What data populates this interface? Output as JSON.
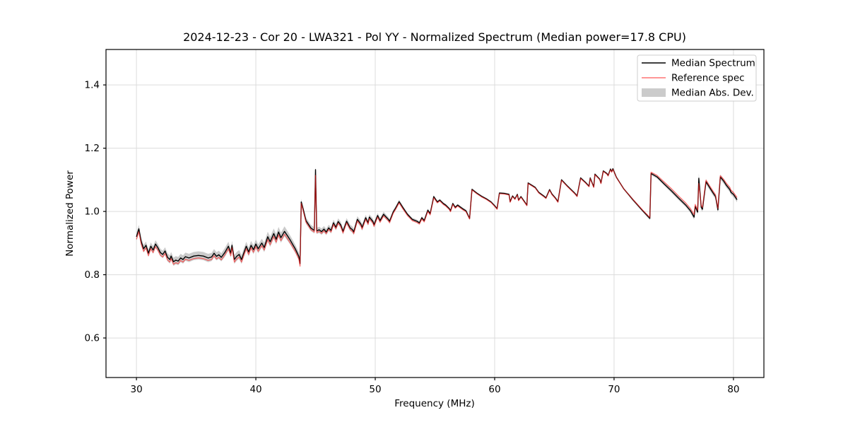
{
  "title": "2024-12-23 - Cor 20 - LWA321 - Pol YY - Normalized Spectrum (Median power=17.8 CPU)",
  "xlabel": "Frequency (MHz)",
  "ylabel": "Normalized Power",
  "legend": {
    "items": [
      {
        "label": "Median Spectrum",
        "type": "line",
        "color": "#000000"
      },
      {
        "label": "Reference spec",
        "type": "line",
        "color": "rgba(255,30,30,0.62)"
      },
      {
        "label": "Median Abs. Dev.",
        "type": "patch",
        "color": "rgba(140,140,140,0.45)"
      }
    ]
  },
  "colors": {
    "median_line": "#000000",
    "reference_line": "rgba(255,30,30,0.62)",
    "mad_band": "rgba(140,140,140,0.45)",
    "grid": "#dcdcdc",
    "spine": "#000000",
    "legend_border": "#cccccc",
    "legend_bg": "rgba(255,255,255,0.9)"
  },
  "chart_data": {
    "type": "line",
    "title": "2024-12-23 - Cor 20 - LWA321 - Pol YY - Normalized Spectrum (Median power=17.8 CPU)",
    "xlabel": "Frequency (MHz)",
    "ylabel": "Normalized Power",
    "xlim": [
      27.45,
      82.55
    ],
    "ylim": [
      0.475,
      1.512
    ],
    "xticks": [
      30,
      40,
      50,
      60,
      70,
      80
    ],
    "yticks": [
      0.6,
      0.8,
      1.0,
      1.2,
      1.4
    ],
    "grid": true,
    "legend_position": "upper right",
    "series_names": [
      "Median Spectrum",
      "Reference spec",
      "Median Abs. Dev."
    ],
    "point_format": [
      "frequency_mhz",
      "median",
      "reference",
      "mad_halfwidth"
    ],
    "points": [
      [
        30.0,
        0.92,
        0.912,
        0.012
      ],
      [
        30.2,
        0.945,
        0.936,
        0.012
      ],
      [
        30.4,
        0.905,
        0.897,
        0.012
      ],
      [
        30.6,
        0.882,
        0.874,
        0.012
      ],
      [
        30.8,
        0.893,
        0.885,
        0.012
      ],
      [
        31.0,
        0.868,
        0.86,
        0.012
      ],
      [
        31.2,
        0.89,
        0.882,
        0.012
      ],
      [
        31.4,
        0.878,
        0.87,
        0.012
      ],
      [
        31.6,
        0.897,
        0.889,
        0.012
      ],
      [
        31.8,
        0.885,
        0.877,
        0.012
      ],
      [
        32.0,
        0.87,
        0.862,
        0.012
      ],
      [
        32.2,
        0.864,
        0.856,
        0.012
      ],
      [
        32.4,
        0.875,
        0.867,
        0.012
      ],
      [
        32.6,
        0.855,
        0.847,
        0.013
      ],
      [
        32.8,
        0.848,
        0.84,
        0.013
      ],
      [
        32.9,
        0.859,
        0.851,
        0.013
      ],
      [
        33.1,
        0.841,
        0.833,
        0.013
      ],
      [
        33.3,
        0.846,
        0.838,
        0.013
      ],
      [
        33.5,
        0.843,
        0.835,
        0.013
      ],
      [
        33.7,
        0.853,
        0.845,
        0.013
      ],
      [
        33.9,
        0.848,
        0.84,
        0.013
      ],
      [
        34.1,
        0.857,
        0.849,
        0.013
      ],
      [
        34.4,
        0.853,
        0.845,
        0.013
      ],
      [
        34.8,
        0.859,
        0.851,
        0.013
      ],
      [
        35.2,
        0.861,
        0.853,
        0.013
      ],
      [
        35.6,
        0.859,
        0.851,
        0.013
      ],
      [
        36.0,
        0.853,
        0.845,
        0.013
      ],
      [
        36.3,
        0.856,
        0.848,
        0.013
      ],
      [
        36.5,
        0.868,
        0.86,
        0.013
      ],
      [
        36.7,
        0.858,
        0.85,
        0.013
      ],
      [
        36.9,
        0.863,
        0.855,
        0.013
      ],
      [
        37.1,
        0.855,
        0.847,
        0.013
      ],
      [
        37.4,
        0.87,
        0.862,
        0.014
      ],
      [
        37.7,
        0.89,
        0.882,
        0.014
      ],
      [
        37.9,
        0.868,
        0.86,
        0.014
      ],
      [
        38.0,
        0.893,
        0.885,
        0.014
      ],
      [
        38.2,
        0.848,
        0.84,
        0.014
      ],
      [
        38.4,
        0.858,
        0.85,
        0.014
      ],
      [
        38.6,
        0.864,
        0.856,
        0.014
      ],
      [
        38.8,
        0.848,
        0.84,
        0.014
      ],
      [
        39.0,
        0.87,
        0.862,
        0.014
      ],
      [
        39.2,
        0.89,
        0.882,
        0.014
      ],
      [
        39.4,
        0.872,
        0.864,
        0.014
      ],
      [
        39.6,
        0.893,
        0.885,
        0.014
      ],
      [
        39.8,
        0.879,
        0.871,
        0.014
      ],
      [
        40.0,
        0.897,
        0.889,
        0.014
      ],
      [
        40.2,
        0.882,
        0.874,
        0.014
      ],
      [
        40.5,
        0.9,
        0.892,
        0.014
      ],
      [
        40.7,
        0.886,
        0.878,
        0.015
      ],
      [
        41.0,
        0.92,
        0.911,
        0.016
      ],
      [
        41.2,
        0.904,
        0.895,
        0.016
      ],
      [
        41.5,
        0.93,
        0.921,
        0.016
      ],
      [
        41.7,
        0.912,
        0.903,
        0.016
      ],
      [
        41.9,
        0.935,
        0.926,
        0.016
      ],
      [
        42.1,
        0.917,
        0.908,
        0.016
      ],
      [
        42.4,
        0.937,
        0.928,
        0.016
      ],
      [
        42.7,
        0.92,
        0.911,
        0.015
      ],
      [
        42.9,
        0.908,
        0.899,
        0.014
      ],
      [
        43.1,
        0.895,
        0.887,
        0.014
      ],
      [
        43.3,
        0.882,
        0.874,
        0.013
      ],
      [
        43.6,
        0.858,
        0.85,
        0.013
      ],
      [
        43.7,
        0.835,
        0.827,
        0.012
      ],
      [
        43.8,
        1.03,
        1.025,
        0.01
      ],
      [
        44.0,
        1.002,
        0.997,
        0.01
      ],
      [
        44.2,
        0.971,
        0.966,
        0.01
      ],
      [
        44.6,
        0.948,
        0.943,
        0.01
      ],
      [
        44.9,
        0.94,
        0.935,
        0.01
      ],
      [
        45.0,
        1.132,
        1.114,
        0.012
      ],
      [
        45.1,
        0.938,
        0.933,
        0.01
      ],
      [
        45.3,
        0.942,
        0.937,
        0.01
      ],
      [
        45.5,
        0.936,
        0.931,
        0.01
      ],
      [
        45.7,
        0.944,
        0.939,
        0.01
      ],
      [
        45.9,
        0.935,
        0.93,
        0.01
      ],
      [
        46.1,
        0.948,
        0.943,
        0.01
      ],
      [
        46.3,
        0.94,
        0.935,
        0.01
      ],
      [
        46.5,
        0.964,
        0.959,
        0.01
      ],
      [
        46.7,
        0.95,
        0.945,
        0.01
      ],
      [
        46.9,
        0.968,
        0.963,
        0.01
      ],
      [
        47.1,
        0.958,
        0.953,
        0.01
      ],
      [
        47.3,
        0.937,
        0.932,
        0.01
      ],
      [
        47.6,
        0.969,
        0.964,
        0.01
      ],
      [
        47.9,
        0.948,
        0.943,
        0.01
      ],
      [
        48.1,
        0.942,
        0.937,
        0.01
      ],
      [
        48.2,
        0.935,
        0.93,
        0.01
      ],
      [
        48.5,
        0.975,
        0.97,
        0.01
      ],
      [
        48.8,
        0.96,
        0.955,
        0.01
      ],
      [
        48.9,
        0.949,
        0.944,
        0.01
      ],
      [
        49.2,
        0.98,
        0.975,
        0.009
      ],
      [
        49.4,
        0.964,
        0.959,
        0.009
      ],
      [
        49.5,
        0.982,
        0.977,
        0.009
      ],
      [
        49.8,
        0.969,
        0.964,
        0.009
      ],
      [
        49.9,
        0.958,
        0.953,
        0.009
      ],
      [
        50.2,
        0.987,
        0.982,
        0.008
      ],
      [
        50.4,
        0.971,
        0.966,
        0.008
      ],
      [
        50.7,
        0.991,
        0.986,
        0.008
      ],
      [
        51.1,
        0.975,
        0.97,
        0.007
      ],
      [
        51.2,
        0.969,
        0.964,
        0.007
      ],
      [
        51.5,
        0.998,
        0.994,
        0.007
      ],
      [
        51.7,
        1.01,
        1.006,
        0.006
      ],
      [
        52.0,
        1.031,
        1.027,
        0.006
      ],
      [
        52.3,
        1.013,
        1.009,
        0.006
      ],
      [
        52.7,
        0.991,
        0.987,
        0.005
      ],
      [
        53.1,
        0.975,
        0.971,
        0.005
      ],
      [
        53.5,
        0.969,
        0.965,
        0.005
      ],
      [
        53.7,
        0.964,
        0.96,
        0.005
      ],
      [
        53.9,
        0.98,
        0.976,
        0.005
      ],
      [
        54.1,
        0.971,
        0.967,
        0.005
      ],
      [
        54.4,
        1.004,
        1.0,
        0.005
      ],
      [
        54.6,
        0.993,
        0.989,
        0.005
      ],
      [
        54.9,
        1.047,
        1.043,
        0.004
      ],
      [
        55.2,
        1.03,
        1.027,
        0.004
      ],
      [
        55.4,
        1.036,
        1.033,
        0.004
      ],
      [
        55.7,
        1.025,
        1.022,
        0.004
      ],
      [
        55.9,
        1.02,
        1.017,
        0.004
      ],
      [
        56.2,
        1.009,
        1.006,
        0.004
      ],
      [
        56.3,
        1.002,
        0.999,
        0.004
      ],
      [
        56.5,
        1.025,
        1.022,
        0.004
      ],
      [
        56.7,
        1.013,
        1.01,
        0.004
      ],
      [
        56.9,
        1.02,
        1.017,
        0.004
      ],
      [
        57.3,
        1.009,
        1.006,
        0.004
      ],
      [
        57.6,
        1.002,
        0.999,
        0.004
      ],
      [
        57.9,
        0.978,
        0.976,
        0.004
      ],
      [
        58.1,
        1.07,
        1.068,
        0.003
      ],
      [
        58.5,
        1.058,
        1.056,
        0.003
      ],
      [
        58.9,
        1.048,
        1.046,
        0.003
      ],
      [
        59.3,
        1.04,
        1.038,
        0.003
      ],
      [
        59.7,
        1.03,
        1.028,
        0.003
      ],
      [
        60.0,
        1.018,
        1.016,
        0.003
      ],
      [
        60.2,
        1.009,
        1.007,
        0.003
      ],
      [
        60.4,
        1.058,
        1.056,
        0.003
      ],
      [
        60.8,
        1.057,
        1.055,
        0.003
      ],
      [
        61.2,
        1.054,
        1.052,
        0.003
      ],
      [
        61.3,
        1.031,
        1.029,
        0.003
      ],
      [
        61.5,
        1.049,
        1.047,
        0.003
      ],
      [
        61.7,
        1.04,
        1.038,
        0.003
      ],
      [
        61.9,
        1.054,
        1.052,
        0.003
      ],
      [
        62.0,
        1.036,
        1.034,
        0.003
      ],
      [
        62.2,
        1.047,
        1.045,
        0.003
      ],
      [
        62.5,
        1.031,
        1.029,
        0.003
      ],
      [
        62.7,
        1.02,
        1.018,
        0.003
      ],
      [
        62.8,
        1.09,
        1.088,
        0.003
      ],
      [
        63.1,
        1.083,
        1.081,
        0.003
      ],
      [
        63.4,
        1.076,
        1.074,
        0.003
      ],
      [
        63.7,
        1.06,
        1.058,
        0.003
      ],
      [
        64.1,
        1.049,
        1.047,
        0.003
      ],
      [
        64.3,
        1.043,
        1.041,
        0.003
      ],
      [
        64.6,
        1.069,
        1.067,
        0.003
      ],
      [
        64.8,
        1.055,
        1.053,
        0.003
      ],
      [
        65.1,
        1.042,
        1.04,
        0.003
      ],
      [
        65.3,
        1.031,
        1.029,
        0.003
      ],
      [
        65.6,
        1.1,
        1.098,
        0.003
      ],
      [
        66.1,
        1.08,
        1.078,
        0.003
      ],
      [
        66.7,
        1.058,
        1.056,
        0.003
      ],
      [
        66.9,
        1.049,
        1.047,
        0.003
      ],
      [
        67.2,
        1.106,
        1.104,
        0.003
      ],
      [
        67.6,
        1.092,
        1.09,
        0.003
      ],
      [
        67.9,
        1.08,
        1.078,
        0.003
      ],
      [
        68.0,
        1.106,
        1.104,
        0.003
      ],
      [
        68.3,
        1.078,
        1.076,
        0.003
      ],
      [
        68.4,
        1.118,
        1.116,
        0.003
      ],
      [
        68.8,
        1.102,
        1.1,
        0.003
      ],
      [
        68.9,
        1.09,
        1.088,
        0.003
      ],
      [
        69.1,
        1.128,
        1.126,
        0.003
      ],
      [
        69.4,
        1.12,
        1.118,
        0.003
      ],
      [
        69.5,
        1.114,
        1.112,
        0.003
      ],
      [
        69.7,
        1.134,
        1.132,
        0.003
      ],
      [
        69.8,
        1.126,
        1.124,
        0.003
      ],
      [
        69.9,
        1.135,
        1.133,
        0.003
      ],
      [
        70.2,
        1.108,
        1.107,
        0.003
      ],
      [
        70.8,
        1.072,
        1.072,
        0.003
      ],
      [
        71.6,
        1.036,
        1.037,
        0.004
      ],
      [
        72.4,
        1.002,
        1.004,
        0.004
      ],
      [
        73.0,
        0.978,
        0.981,
        0.005
      ],
      [
        73.1,
        1.12,
        1.124,
        0.005
      ],
      [
        73.6,
        1.109,
        1.114,
        0.005
      ],
      [
        74.2,
        1.087,
        1.093,
        0.006
      ],
      [
        74.8,
        1.065,
        1.072,
        0.006
      ],
      [
        75.4,
        1.042,
        1.049,
        0.006
      ],
      [
        76.0,
        1.02,
        1.027,
        0.006
      ],
      [
        76.4,
        1.002,
        1.009,
        0.007
      ],
      [
        76.7,
        0.982,
        0.99,
        0.008
      ],
      [
        76.8,
        1.016,
        1.022,
        0.008
      ],
      [
        77.0,
        0.998,
        1.004,
        0.008
      ],
      [
        77.1,
        1.105,
        1.088,
        0.015
      ],
      [
        77.3,
        1.013,
        1.019,
        0.008
      ],
      [
        77.4,
        1.007,
        1.013,
        0.008
      ],
      [
        77.7,
        1.094,
        1.099,
        0.008
      ],
      [
        78.0,
        1.076,
        1.081,
        0.008
      ],
      [
        78.3,
        1.058,
        1.063,
        0.008
      ],
      [
        78.5,
        1.047,
        1.052,
        0.008
      ],
      [
        78.6,
        1.025,
        1.03,
        0.008
      ],
      [
        78.7,
        1.005,
        1.01,
        0.008
      ],
      [
        78.9,
        1.109,
        1.113,
        0.008
      ],
      [
        79.2,
        1.095,
        1.1,
        0.008
      ],
      [
        79.4,
        1.083,
        1.089,
        0.008
      ],
      [
        79.7,
        1.069,
        1.076,
        0.008
      ],
      [
        79.8,
        1.06,
        1.067,
        0.008
      ],
      [
        80.0,
        1.054,
        1.06,
        0.008
      ],
      [
        80.3,
        1.037,
        1.044,
        0.008
      ]
    ]
  }
}
